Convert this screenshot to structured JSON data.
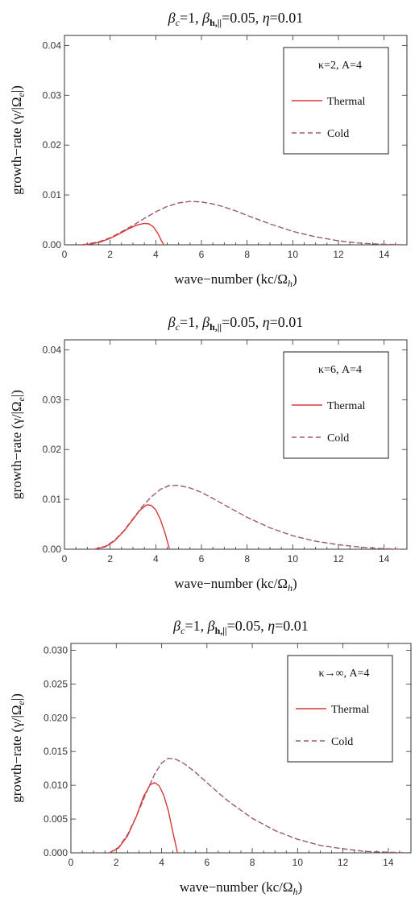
{
  "chart_data": [
    {
      "type": "line",
      "title_parts": {
        "b1": "β",
        "b1sub": "c",
        "t1": "=1, ",
        "b2": "β",
        "b2sub": "h,||",
        "t2": "=0.05, ",
        "eta": "η",
        "t3": "=0.01"
      },
      "xlabel": {
        "main": "wave−number (kc/Ω",
        "sub": "h",
        "close": ")"
      },
      "ylabel": {
        "main": "growth−rate (γ/|Ω",
        "sub": "e",
        "close": "|)"
      },
      "xlim": [
        0,
        15
      ],
      "ylim": [
        0,
        0.042
      ],
      "xticks": [
        "0",
        "2",
        "4",
        "6",
        "8",
        "10",
        "12",
        "14"
      ],
      "yticks": [
        "0.00",
        "0.01",
        "0.02",
        "0.03",
        "0.04"
      ],
      "yticks_values": [
        0,
        0.01,
        0.02,
        0.03,
        0.04
      ],
      "legend": {
        "title": "κ=2, A=4",
        "placement": "top-right"
      },
      "series": [
        {
          "name": "Thermal",
          "style": "solid",
          "color": "#d63a3a",
          "x": [
            0.8,
            1.2,
            1.6,
            2.0,
            2.4,
            2.8,
            3.2,
            3.5,
            3.7,
            3.9,
            4.1,
            4.25,
            4.35
          ],
          "y": [
            0.0,
            0.0002,
            0.0006,
            0.0013,
            0.0022,
            0.0032,
            0.004,
            0.0043,
            0.0042,
            0.0036,
            0.0022,
            0.0008,
            0.0
          ]
        },
        {
          "name": "Cold",
          "style": "dashed",
          "color": "#9a5a72",
          "x": [
            0.8,
            1.5,
            2.0,
            2.5,
            3.0,
            3.5,
            4.0,
            4.5,
            5.0,
            5.5,
            6.0,
            6.5,
            7.0,
            7.5,
            8.0,
            9.0,
            10.0,
            11.0,
            12.0,
            13.0,
            14.0,
            14.8
          ],
          "y": [
            0.0,
            0.0006,
            0.0014,
            0.0026,
            0.0039,
            0.0053,
            0.0066,
            0.0077,
            0.0084,
            0.0087,
            0.0086,
            0.0082,
            0.0076,
            0.0068,
            0.0059,
            0.0042,
            0.0027,
            0.0016,
            0.0008,
            0.0003,
            0.0001,
            0.0
          ]
        }
      ]
    },
    {
      "type": "line",
      "title_parts": {
        "b1": "β",
        "b1sub": "c",
        "t1": "=1, ",
        "b2": "β",
        "b2sub": "h,||",
        "t2": "=0.05, ",
        "eta": "η",
        "t3": "=0.01"
      },
      "xlabel": {
        "main": "wave−number (kc/Ω",
        "sub": "h",
        "close": ")"
      },
      "ylabel": {
        "main": "growth−rate (γ/|Ω",
        "sub": "e",
        "close": "|)"
      },
      "xlim": [
        0,
        15
      ],
      "ylim": [
        0,
        0.042
      ],
      "xticks": [
        "0",
        "2",
        "4",
        "6",
        "8",
        "10",
        "12",
        "14"
      ],
      "yticks": [
        "0.00",
        "0.01",
        "0.02",
        "0.03",
        "0.04"
      ],
      "yticks_values": [
        0,
        0.01,
        0.02,
        0.03,
        0.04
      ],
      "legend": {
        "title": "κ=6, A=4",
        "placement": "top-right"
      },
      "series": [
        {
          "name": "Thermal",
          "style": "solid",
          "color": "#d63a3a",
          "x": [
            1.3,
            1.8,
            2.2,
            2.6,
            3.0,
            3.3,
            3.6,
            3.8,
            4.0,
            4.2,
            4.4,
            4.55,
            4.6
          ],
          "y": [
            0.0,
            0.0005,
            0.0017,
            0.0036,
            0.006,
            0.0078,
            0.0089,
            0.0088,
            0.0079,
            0.006,
            0.0033,
            0.0009,
            0.0
          ]
        },
        {
          "name": "Cold",
          "style": "dashed",
          "color": "#9a5a72",
          "x": [
            1.3,
            1.8,
            2.2,
            2.6,
            3.0,
            3.4,
            3.8,
            4.2,
            4.6,
            5.0,
            5.5,
            6.0,
            6.5,
            7.0,
            8.0,
            9.0,
            10.0,
            11.0,
            12.0,
            13.0,
            14.0,
            14.8
          ],
          "y": [
            0.0,
            0.0006,
            0.0018,
            0.0037,
            0.0061,
            0.0085,
            0.0105,
            0.012,
            0.0128,
            0.0128,
            0.0123,
            0.0114,
            0.0102,
            0.0089,
            0.0064,
            0.0043,
            0.0027,
            0.0016,
            0.0009,
            0.0004,
            0.0001,
            0.0
          ]
        }
      ]
    },
    {
      "type": "line",
      "title_parts": {
        "b1": "β",
        "b1sub": "c",
        "t1": "=1, ",
        "b2": "β",
        "b2sub": "h,||",
        "t2": "=0.05, ",
        "eta": "η",
        "t3": "=0.01"
      },
      "xlabel": {
        "main": "wave−number (kc/Ω",
        "sub": "h",
        "close": ")"
      },
      "ylabel": {
        "main": "growth−rate (γ/|Ω",
        "sub": "e",
        "close": "|)"
      },
      "xlim": [
        0,
        15
      ],
      "ylim": [
        0,
        0.031
      ],
      "xticks": [
        "0",
        "2",
        "4",
        "6",
        "8",
        "10",
        "12",
        "14"
      ],
      "yticks": [
        "0.000",
        "0.005",
        "0.010",
        "0.015",
        "0.020",
        "0.025",
        "0.030"
      ],
      "yticks_values": [
        0,
        0.005,
        0.01,
        0.015,
        0.02,
        0.025,
        0.03
      ],
      "legend": {
        "title": "κ→∞, A=4",
        "placement": "top-right"
      },
      "series": [
        {
          "name": "Thermal",
          "style": "solid",
          "color": "#d63a3a",
          "x": [
            1.7,
            2.1,
            2.5,
            2.9,
            3.2,
            3.5,
            3.7,
            3.9,
            4.1,
            4.3,
            4.5,
            4.65,
            4.7
          ],
          "y": [
            0.0,
            0.0007,
            0.0025,
            0.0055,
            0.0083,
            0.0101,
            0.0104,
            0.0099,
            0.0085,
            0.0062,
            0.003,
            0.0008,
            0.0
          ]
        },
        {
          "name": "Cold",
          "style": "dashed",
          "color": "#9a5a72",
          "x": [
            1.7,
            2.1,
            2.5,
            2.9,
            3.3,
            3.7,
            4.0,
            4.3,
            4.6,
            5.0,
            5.5,
            6.0,
            6.5,
            7.0,
            8.0,
            9.0,
            10.0,
            11.0,
            12.0,
            13.0,
            14.0,
            14.8
          ],
          "y": [
            0.0,
            0.0008,
            0.0027,
            0.0055,
            0.0087,
            0.0117,
            0.0133,
            0.014,
            0.0139,
            0.0132,
            0.0119,
            0.0104,
            0.0089,
            0.0075,
            0.0051,
            0.0033,
            0.002,
            0.0011,
            0.0006,
            0.0002,
            0.0001,
            0.0
          ]
        }
      ]
    }
  ]
}
